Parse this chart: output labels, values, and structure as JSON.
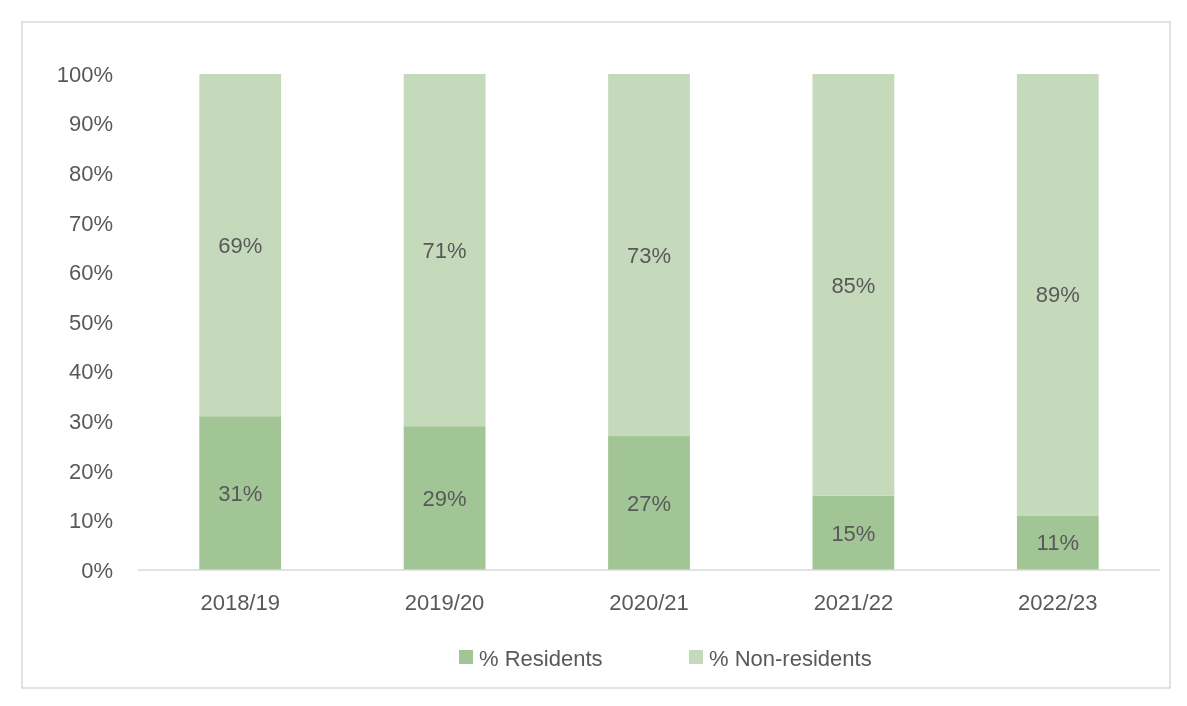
{
  "chart_data": {
    "type": "bar",
    "stacked": true,
    "categories": [
      "2018/19",
      "2019/20",
      "2020/21",
      "2021/22",
      "2022/23"
    ],
    "series": [
      {
        "name": "% Residents",
        "color": "#a2c595",
        "values": [
          31,
          29,
          27,
          15,
          11
        ],
        "value_labels": [
          "31%",
          "29%",
          "27%",
          "15%",
          "11%"
        ]
      },
      {
        "name": "% Non-residents",
        "color": "#c5dabb",
        "values": [
          69,
          71,
          73,
          85,
          89
        ],
        "value_labels": [
          "69%",
          "71%",
          "73%",
          "85%",
          "89%"
        ]
      }
    ],
    "ylim": [
      0,
      100
    ],
    "yticks": [
      {
        "value": 0,
        "label": "0%"
      },
      {
        "value": 10,
        "label": "10%"
      },
      {
        "value": 20,
        "label": "20%"
      },
      {
        "value": 30,
        "label": "30%"
      },
      {
        "value": 40,
        "label": "40%"
      },
      {
        "value": 50,
        "label": "50%"
      },
      {
        "value": 60,
        "label": "60%"
      },
      {
        "value": 70,
        "label": "70%"
      },
      {
        "value": 80,
        "label": "80%"
      },
      {
        "value": 90,
        "label": "90%"
      },
      {
        "value": 100,
        "label": "100%"
      }
    ],
    "legend": "bottom",
    "grid": false
  }
}
